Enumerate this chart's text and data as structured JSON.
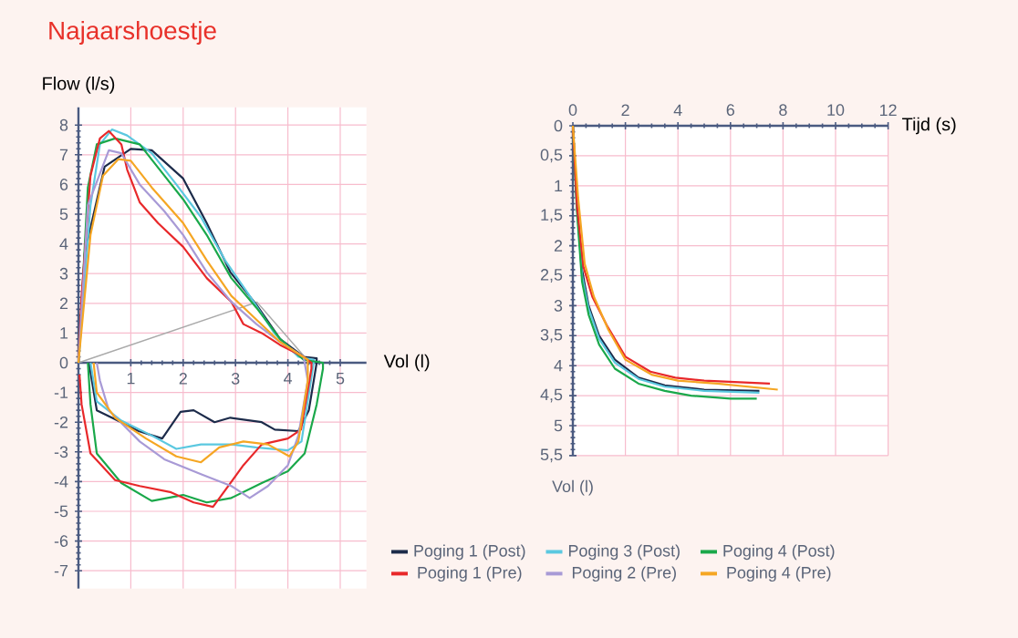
{
  "chart_data": [
    {
      "type": "line",
      "title": "Najaarshoestje",
      "xlabel": "Vol (l)",
      "ylabel": "Flow (l/s)",
      "xlim": [
        0,
        5.5
      ],
      "ylim": [
        -7.6,
        8.6
      ],
      "xticks": [
        1,
        2,
        3,
        4,
        5
      ],
      "yticks": [
        -7,
        -6,
        -5,
        -4,
        -3,
        -2,
        -1,
        0,
        1,
        2,
        3,
        4,
        5,
        6,
        7,
        8
      ],
      "grid": true,
      "legend": "bottom right",
      "series": [
        {
          "color": "#aaaaaa",
          "x": [
            0,
            3.41,
            4.32
          ],
          "values": [
            0,
            2.04,
            0.2
          ]
        },
        {
          "name": "Poging 1 (Post)",
          "color": "#1c2b4a",
          "x": [
            0,
            0.12,
            0.5,
            1.0,
            1.4,
            2.0,
            2.45,
            2.9,
            3.4,
            3.85,
            4.3,
            4.55,
            4.55,
            4.4,
            4.2,
            3.75,
            3.5,
            2.9,
            2.6,
            2.2,
            1.95,
            1.6,
            1.15,
            0.7,
            0.35,
            0.2
          ],
          "values": [
            0,
            3.7,
            6.6,
            7.2,
            7.15,
            6.2,
            4.7,
            3.05,
            1.95,
            0.8,
            0.2,
            0.15,
            0,
            -1.6,
            -2.3,
            -2.25,
            -2.0,
            -1.85,
            -2.0,
            -1.6,
            -1.65,
            -2.55,
            -2.3,
            -1.9,
            -1.6,
            0
          ]
        },
        {
          "name": "Poging 3 (Post)",
          "color": "#5bc8e0",
          "x": [
            0,
            0.23,
            0.41,
            0.64,
            0.93,
            1.4,
            1.87,
            2.34,
            2.8,
            3.27,
            3.74,
            4.2,
            4.5,
            4.44,
            4.26,
            4.0,
            3.39,
            2.92,
            2.34,
            1.87,
            1.4,
            0.82,
            0.35,
            0.23
          ],
          "values": [
            0,
            5.3,
            7.35,
            7.85,
            7.65,
            7.05,
            6.0,
            4.9,
            3.45,
            2.25,
            1.0,
            0.2,
            0.1,
            -0.6,
            -2.65,
            -2.95,
            -2.85,
            -2.75,
            -2.75,
            -2.9,
            -2.45,
            -1.95,
            -1.3,
            0
          ]
        },
        {
          "name": "Poging 4 (Post)",
          "color": "#1aa84a",
          "x": [
            0,
            0.18,
            0.35,
            0.7,
            1.17,
            1.64,
            2.0,
            2.45,
            2.92,
            3.4,
            3.85,
            4.3,
            4.67,
            4.67,
            4.55,
            4.32,
            4.0,
            3.5,
            2.92,
            2.45,
            2.0,
            1.4,
            0.82,
            0.35,
            0.23,
            0.18
          ],
          "values": [
            0,
            5.9,
            7.35,
            7.55,
            7.35,
            6.3,
            5.5,
            4.3,
            2.85,
            1.85,
            0.8,
            0.1,
            0,
            -0.2,
            -1.4,
            -3.05,
            -3.65,
            -4.05,
            -4.55,
            -4.7,
            -4.45,
            -4.65,
            -4.05,
            -3.05,
            -1.4,
            0
          ]
        },
        {
          "name": "Poging 1 (Pre)",
          "color": "#e8282a",
          "x": [
            0,
            0.06,
            0.23,
            0.41,
            0.58,
            0.82,
            0.93,
            1.17,
            1.52,
            2.0,
            2.45,
            2.92,
            3.15,
            3.5,
            3.85,
            4.3,
            4.45,
            4.45,
            4.25,
            4.0,
            3.5,
            3.15,
            2.57,
            2.2,
            1.75,
            1.17,
            0.7,
            0.23,
            0.06,
            0.02
          ],
          "values": [
            0,
            2.25,
            6.3,
            7.55,
            7.8,
            7.35,
            6.5,
            5.4,
            4.7,
            3.9,
            2.85,
            2.05,
            1.3,
            1.0,
            0.6,
            0.2,
            0,
            -0.2,
            -2.25,
            -2.55,
            -2.75,
            -3.45,
            -4.85,
            -4.7,
            -4.35,
            -4.15,
            -3.95,
            -3.05,
            -1.4,
            -0.4
          ]
        },
        {
          "name": "Poging 2 (Pre)",
          "color": "#a89ad6",
          "x": [
            0,
            0.18,
            0.58,
            0.82,
            1.17,
            1.64,
            2.0,
            2.45,
            2.92,
            3.4,
            3.85,
            4.3,
            4.38,
            4.2,
            4.0,
            3.62,
            3.27,
            2.92,
            2.34,
            1.64,
            1.17,
            0.58,
            0.41,
            0.35
          ],
          "values": [
            0,
            5.3,
            7.15,
            7.05,
            6.0,
            5.1,
            4.3,
            3.05,
            2.05,
            1.3,
            0.7,
            0.2,
            -0.6,
            -2.45,
            -3.45,
            -4.15,
            -4.55,
            -4.15,
            -3.75,
            -3.25,
            -2.65,
            -1.6,
            -0.6,
            0
          ]
        },
        {
          "name": "Poging 4 (Pre)",
          "color": "#f5a623",
          "x": [
            0,
            0.23,
            0.47,
            0.76,
            1.0,
            1.4,
            2.0,
            2.45,
            2.92,
            3.4,
            3.85,
            4.38,
            4.38,
            4.2,
            4.03,
            3.62,
            3.15,
            2.69,
            2.34,
            1.87,
            1.29,
            0.7,
            0.35,
            0.29
          ],
          "values": [
            0,
            4.3,
            6.3,
            6.85,
            6.8,
            5.9,
            4.7,
            3.45,
            2.25,
            1.45,
            0.7,
            0.1,
            -0.6,
            -2.65,
            -3.15,
            -2.75,
            -2.65,
            -2.85,
            -3.35,
            -3.15,
            -2.55,
            -1.85,
            -1.0,
            0
          ]
        }
      ]
    },
    {
      "type": "line",
      "xlabel": "Tijd (s)",
      "ylabel": "Vol (l)",
      "xlim": [
        0,
        12
      ],
      "ylim": [
        5.5,
        0
      ],
      "xticks": [
        0,
        2,
        4,
        6,
        8,
        10,
        12
      ],
      "yticks": [
        0,
        {
          "value": 0.5,
          "label": "0,5"
        },
        1,
        {
          "value": 1.5,
          "label": "1,5"
        },
        2,
        {
          "value": 2.5,
          "label": "2,5"
        },
        3,
        {
          "value": 3.5,
          "label": "3,5"
        },
        4,
        {
          "value": 4.5,
          "label": "4,5"
        },
        5,
        {
          "value": 5.5,
          "label": "5,5"
        }
      ],
      "grid": true,
      "series": [
        {
          "color": "#1c2b4a",
          "x": [
            0,
            0.15,
            0.35,
            0.6,
            1.0,
            1.6,
            2.5,
            3.5,
            5,
            7.1
          ],
          "values": [
            0,
            1.3,
            2.4,
            3.0,
            3.5,
            3.9,
            4.2,
            4.33,
            4.4,
            4.42
          ]
        },
        {
          "color": "#5bc8e0",
          "x": [
            0,
            0.15,
            0.35,
            0.6,
            1.0,
            1.6,
            2.5,
            3.5,
            5,
            7.1
          ],
          "values": [
            0,
            1.3,
            2.5,
            3.05,
            3.55,
            3.95,
            4.22,
            4.35,
            4.42,
            4.45
          ]
        },
        {
          "color": "#1aa84a",
          "x": [
            0,
            0.15,
            0.35,
            0.6,
            1.0,
            1.6,
            2.5,
            3.5,
            4.5,
            6,
            7.0
          ],
          "values": [
            0,
            1.4,
            2.6,
            3.15,
            3.65,
            4.05,
            4.3,
            4.42,
            4.5,
            4.55,
            4.55
          ]
        },
        {
          "color": "#e8282a",
          "x": [
            0,
            0.16,
            0.4,
            0.74,
            1.32,
            2.0,
            2.95,
            3.9,
            5.0,
            7.5
          ],
          "values": [
            0,
            1.35,
            2.35,
            2.85,
            3.35,
            3.85,
            4.1,
            4.2,
            4.25,
            4.3
          ]
        },
        {
          "color": "#f5a623",
          "x": [
            0,
            0.2,
            0.45,
            0.8,
            1.35,
            2.0,
            3.0,
            4.0,
            5.5,
            7.8
          ],
          "values": [
            0,
            1.2,
            2.3,
            2.85,
            3.4,
            3.9,
            4.15,
            4.25,
            4.3,
            4.4
          ]
        }
      ]
    }
  ]
}
